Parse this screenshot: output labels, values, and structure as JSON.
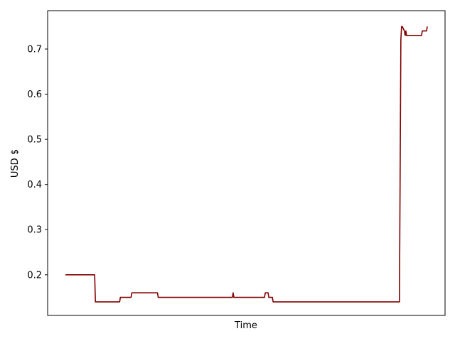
{
  "chart_data": {
    "type": "line",
    "title": "",
    "xlabel": "Time",
    "ylabel": "USD $",
    "ylim": [
      0.11,
      0.785
    ],
    "yticks": [
      0.2,
      0.3,
      0.4,
      0.5,
      0.6,
      0.7
    ],
    "grid": false,
    "legend": "none",
    "series": [
      {
        "color": "#800000",
        "x": [
          0,
          41,
          42,
          76,
          77,
          92,
          93,
          129,
          130,
          234,
          235,
          236,
          279,
          280,
          284,
          285,
          290,
          291,
          468,
          470,
          471,
          472,
          475,
          476,
          477,
          478,
          499,
          500,
          506,
          507
        ],
        "values": [
          0.2,
          0.2,
          0.14,
          0.14,
          0.15,
          0.15,
          0.16,
          0.16,
          0.15,
          0.15,
          0.16,
          0.15,
          0.15,
          0.16,
          0.16,
          0.15,
          0.15,
          0.14,
          0.14,
          0.72,
          0.75,
          0.75,
          0.74,
          0.73,
          0.74,
          0.73,
          0.73,
          0.74,
          0.74,
          0.75
        ]
      }
    ]
  }
}
